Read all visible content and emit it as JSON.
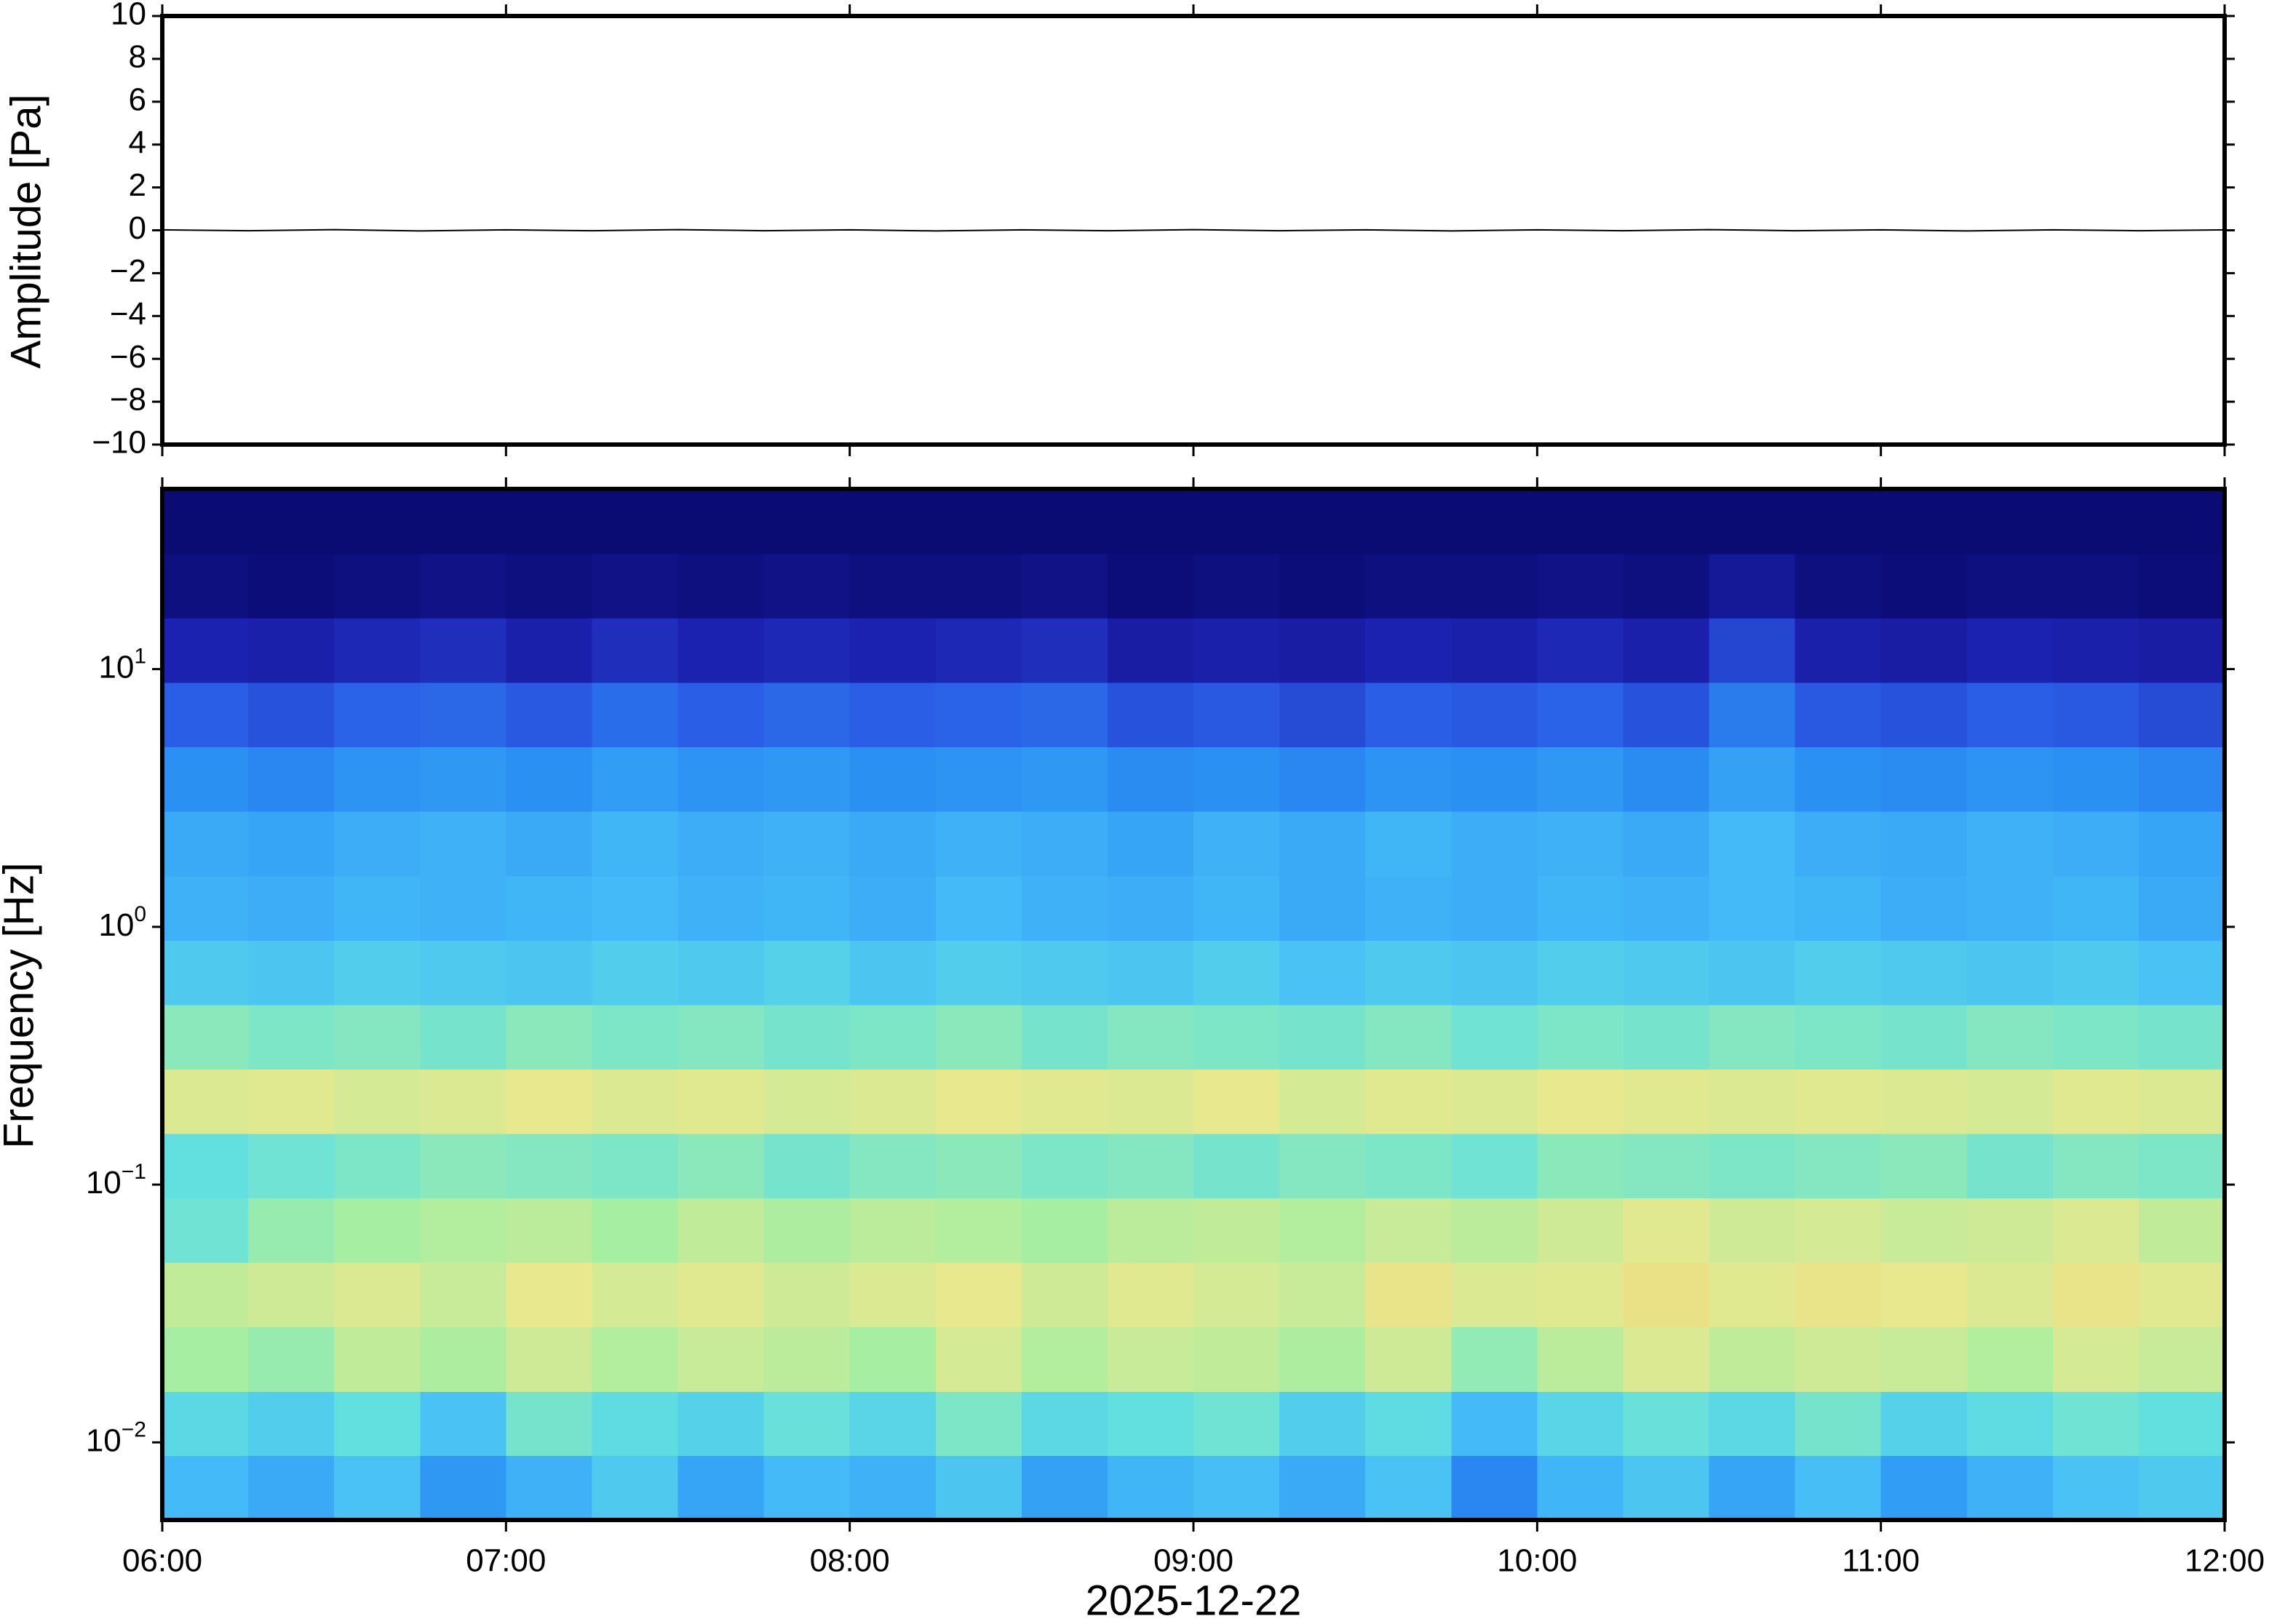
{
  "chart_data": [
    {
      "type": "line",
      "ylabel": "Amplitude [Pa]",
      "xlim": [
        6,
        12
      ],
      "xticks": [
        {
          "value": 6,
          "label": "06:00"
        },
        {
          "value": 7,
          "label": "07:00"
        },
        {
          "value": 8,
          "label": "08:00"
        },
        {
          "value": 9,
          "label": "09:00"
        },
        {
          "value": 10,
          "label": "10:00"
        },
        {
          "value": 11,
          "label": "11:00"
        },
        {
          "value": 12,
          "label": "12:00"
        }
      ],
      "ylim": [
        -10,
        10
      ],
      "yticks": [
        {
          "value": -10,
          "label": "−10"
        },
        {
          "value": -8,
          "label": "−8"
        },
        {
          "value": -6,
          "label": "−6"
        },
        {
          "value": -4,
          "label": "−4"
        },
        {
          "value": -2,
          "label": "−2"
        },
        0,
        2,
        4,
        6,
        8,
        10
      ],
      "series": [
        {
          "color": "#000000",
          "x": [
            6,
            6.25,
            6.5,
            6.75,
            7,
            7.25,
            7.5,
            7.75,
            8,
            8.25,
            8.5,
            8.75,
            9,
            9.25,
            9.5,
            9.75,
            10,
            10.25,
            10.5,
            10.75,
            11,
            11.25,
            11.5,
            11.75,
            12
          ],
          "values": [
            0.02,
            -0.02,
            0.03,
            -0.03,
            0.02,
            -0.02,
            0.03,
            -0.02,
            0.02,
            -0.03,
            0.02,
            -0.02,
            0.03,
            -0.02,
            0.02,
            -0.03,
            0.02,
            -0.02,
            0.03,
            -0.02,
            0.02,
            -0.03,
            0.02,
            -0.02,
            0.02
          ]
        }
      ]
    },
    {
      "type": "heatmap",
      "ylabel": "Frequency [Hz]",
      "xlabel": "2025-12-22",
      "xlim": [
        6,
        12
      ],
      "xticks": [
        {
          "value": 6,
          "label": "06:00"
        },
        {
          "value": 7,
          "label": "07:00"
        },
        {
          "value": 8,
          "label": "08:00"
        },
        {
          "value": 9,
          "label": "09:00"
        },
        {
          "value": 10,
          "label": "10:00"
        },
        {
          "value": 11,
          "label": "11:00"
        },
        {
          "value": 12,
          "label": "12:00"
        }
      ],
      "ylim": [
        0.005,
        50
      ],
      "log_y": true,
      "yticks": [
        {
          "value": 0.01,
          "label": "10",
          "exponent": "−2"
        },
        {
          "value": 0.1,
          "label": "10",
          "exponent": "−1"
        },
        {
          "value": 1,
          "label": "10",
          "exponent": "0"
        },
        {
          "value": 10,
          "label": "10",
          "exponent": "1"
        }
      ],
      "x_edges": [
        6,
        6.25,
        6.5,
        6.75,
        7,
        7.25,
        7.5,
        7.75,
        8,
        8.25,
        8.5,
        8.75,
        9,
        9.25,
        9.5,
        9.75,
        10,
        10.25,
        10.5,
        10.75,
        11,
        11.25,
        11.5,
        11.75,
        12
      ],
      "y_edges": [
        0.005,
        0.0089,
        0.0158,
        0.0281,
        0.05,
        0.0889,
        0.158,
        0.281,
        0.5,
        0.889,
        1.58,
        2.81,
        5,
        8.89,
        15.8,
        28.1,
        50
      ],
      "zlim": [
        0,
        8
      ],
      "colorscale": [
        "#0b0b74",
        "#1c22b0",
        "#2a5ee6",
        "#2a90f2",
        "#44baf8",
        "#62e0e0",
        "#a6eea2",
        "#e8e88e",
        "#f0c464"
      ],
      "z": [
        [
          4.0,
          3.6,
          4.2,
          3.2,
          3.8,
          4.4,
          3.5,
          4.0,
          3.8,
          4.3,
          3.4,
          3.9,
          4.1,
          3.6,
          4.2,
          2.8,
          3.9,
          4.3,
          3.5,
          4.1,
          3.3,
          3.8,
          4.2,
          4.4
        ],
        [
          4.8,
          4.5,
          5.0,
          4.2,
          5.3,
          4.9,
          4.6,
          5.1,
          4.7,
          5.4,
          4.8,
          5.0,
          5.2,
          4.5,
          4.9,
          4.0,
          4.7,
          5.1,
          4.8,
          5.3,
          4.6,
          4.9,
          5.2,
          5.0
        ],
        [
          6.0,
          5.8,
          6.4,
          6.1,
          6.6,
          6.2,
          6.5,
          6.3,
          6.0,
          6.7,
          6.2,
          6.5,
          6.4,
          6.1,
          6.6,
          5.7,
          6.3,
          6.8,
          6.4,
          6.6,
          6.5,
          6.2,
          6.7,
          6.5
        ],
        [
          6.4,
          6.6,
          6.8,
          6.5,
          7.0,
          6.7,
          6.9,
          6.6,
          6.8,
          7.0,
          6.6,
          6.9,
          6.7,
          6.5,
          7.1,
          6.8,
          6.9,
          7.2,
          6.9,
          7.1,
          7.0,
          6.8,
          7.1,
          6.9
        ],
        [
          5.2,
          5.8,
          6.0,
          6.2,
          6.3,
          6.0,
          6.4,
          6.1,
          6.3,
          6.2,
          6.0,
          6.3,
          6.4,
          6.2,
          6.5,
          6.3,
          6.6,
          6.9,
          6.6,
          6.7,
          6.5,
          6.6,
          6.8,
          6.4
        ],
        [
          5.0,
          5.2,
          5.4,
          5.6,
          5.5,
          5.4,
          5.6,
          5.3,
          5.5,
          5.6,
          5.4,
          5.5,
          5.3,
          5.5,
          5.4,
          5.2,
          5.6,
          5.5,
          5.4,
          5.5,
          5.6,
          5.3,
          5.5,
          5.4
        ],
        [
          6.8,
          6.9,
          6.7,
          6.8,
          7.0,
          6.8,
          6.9,
          6.7,
          6.8,
          7.0,
          6.9,
          6.8,
          7.0,
          6.7,
          6.9,
          6.8,
          7.0,
          6.9,
          6.8,
          6.9,
          6.8,
          6.7,
          6.9,
          6.8
        ],
        [
          5.6,
          5.4,
          5.5,
          5.3,
          5.6,
          5.4,
          5.5,
          5.3,
          5.4,
          5.6,
          5.3,
          5.5,
          5.4,
          5.3,
          5.5,
          5.2,
          5.4,
          5.3,
          5.5,
          5.4,
          5.3,
          5.5,
          5.4,
          5.3
        ],
        [
          4.4,
          4.3,
          4.5,
          4.4,
          4.3,
          4.5,
          4.4,
          4.6,
          4.3,
          4.5,
          4.4,
          4.3,
          4.5,
          4.2,
          4.4,
          4.3,
          4.5,
          4.4,
          4.3,
          4.5,
          4.4,
          4.3,
          4.4,
          4.2
        ],
        [
          3.8,
          3.7,
          3.9,
          3.8,
          3.9,
          4.0,
          3.8,
          3.9,
          3.7,
          4.0,
          3.8,
          3.7,
          3.9,
          3.6,
          3.8,
          3.7,
          3.9,
          3.8,
          4.0,
          3.9,
          3.7,
          3.8,
          3.9,
          3.6
        ],
        [
          3.6,
          3.5,
          3.7,
          3.8,
          3.6,
          3.9,
          3.7,
          3.8,
          3.6,
          3.8,
          3.7,
          3.5,
          3.8,
          3.6,
          3.9,
          3.7,
          3.8,
          3.6,
          4.0,
          3.7,
          3.6,
          3.8,
          3.7,
          3.5
        ],
        [
          3.0,
          2.8,
          3.1,
          3.2,
          3.0,
          3.3,
          3.1,
          3.2,
          3.0,
          3.1,
          3.2,
          2.9,
          3.0,
          2.8,
          3.1,
          3.0,
          3.2,
          2.9,
          3.4,
          3.0,
          2.9,
          3.1,
          3.0,
          2.8
        ],
        [
          2.0,
          1.8,
          2.1,
          2.2,
          1.9,
          2.3,
          2.0,
          2.2,
          2.0,
          2.1,
          2.2,
          1.8,
          1.9,
          1.7,
          2.0,
          1.9,
          2.1,
          1.8,
          2.6,
          1.9,
          1.8,
          2.0,
          1.9,
          1.7
        ],
        [
          1.0,
          0.9,
          1.1,
          1.2,
          0.9,
          1.2,
          1.0,
          1.1,
          1.0,
          1.1,
          1.2,
          0.8,
          0.9,
          0.8,
          1.0,
          0.9,
          1.1,
          0.9,
          1.6,
          0.9,
          0.8,
          1.0,
          0.9,
          0.8
        ],
        [
          0.2,
          0.1,
          0.2,
          0.3,
          0.2,
          0.3,
          0.2,
          0.3,
          0.2,
          0.2,
          0.3,
          0.1,
          0.2,
          0.1,
          0.2,
          0.2,
          0.3,
          0.2,
          0.6,
          0.2,
          0.1,
          0.2,
          0.2,
          0.1
        ],
        [
          0,
          0,
          0,
          0,
          0,
          0,
          0,
          0,
          0,
          0,
          0,
          0,
          0,
          0,
          0,
          0,
          0,
          0,
          0,
          0,
          0,
          0,
          0,
          0
        ]
      ]
    }
  ]
}
